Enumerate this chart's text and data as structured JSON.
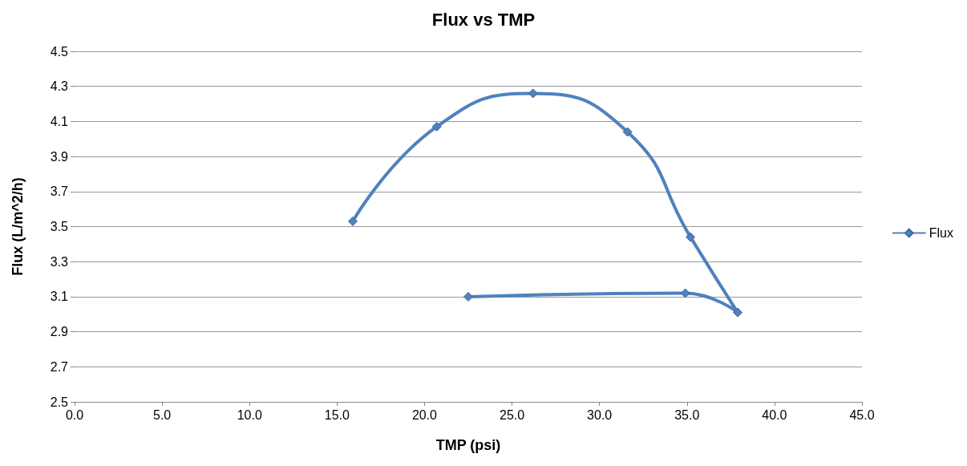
{
  "chart_data": {
    "type": "line",
    "title": "Flux vs TMP",
    "xlabel": "TMP (psi)",
    "ylabel": "Flux (L/m^2/h)",
    "series": [
      {
        "name": "Flux",
        "color": "#4f81bd",
        "x": [
          15.9,
          20.7,
          26.2,
          31.6,
          35.2,
          37.9,
          34.9,
          22.5
        ],
        "values": [
          3.53,
          4.07,
          4.26,
          4.04,
          3.44,
          3.01,
          3.12,
          3.1
        ]
      }
    ],
    "xlim": [
      0,
      45
    ],
    "xticks": [
      {
        "value": 0,
        "label": "0.0"
      },
      {
        "value": 5,
        "label": "5.0"
      },
      {
        "value": 10,
        "label": "10.0"
      },
      {
        "value": 15,
        "label": "15.0"
      },
      {
        "value": 20,
        "label": "20.0"
      },
      {
        "value": 25,
        "label": "25.0"
      },
      {
        "value": 30,
        "label": "30.0"
      },
      {
        "value": 35,
        "label": "35.0"
      },
      {
        "value": 40,
        "label": "40.0"
      },
      {
        "value": 45,
        "label": "45.0"
      }
    ],
    "ylim": [
      2.5,
      4.5
    ],
    "yticks": [
      2.5,
      2.7,
      2.9,
      3.1,
      3.3,
      3.5,
      3.7,
      3.9,
      4.1,
      4.3,
      4.5
    ],
    "grid": "y",
    "legend": "right",
    "marker": "diamond",
    "line_style": "solid"
  }
}
